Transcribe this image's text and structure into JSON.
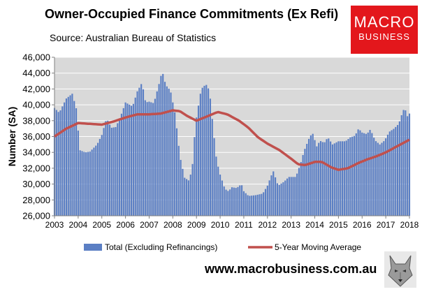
{
  "header": {
    "title": "Owner-Occupied Finance Commitments (Ex Refi)",
    "source": "Source: Australian  Bureau of Statistics",
    "logo_line1": "MACRO",
    "logo_line2": "BUSINESS",
    "website": "www.macrobusiness.com.au"
  },
  "colors": {
    "bar": "#5b7fc4",
    "line": "#c0504d",
    "plot_bg": "#d9d9d9",
    "logo_bg": "#e3171c"
  },
  "icons": {
    "logo_mascot": "wolf-head-icon"
  },
  "chart_data": {
    "type": "bar",
    "ylabel": "Number (SA)",
    "ylim": [
      26000,
      46000
    ],
    "yticks": [
      "26,000",
      "28,000",
      "30,000",
      "32,000",
      "34,000",
      "36,000",
      "38,000",
      "40,000",
      "42,000",
      "44,000",
      "46,000"
    ],
    "xlim": [
      2003,
      2018
    ],
    "xticks": [
      "2003",
      "2004",
      "2005",
      "2006",
      "2007",
      "2008",
      "2009",
      "2010",
      "2011",
      "2012",
      "2013",
      "2014",
      "2015",
      "2016",
      "2017",
      "2018"
    ],
    "grid": true,
    "legend_position": "bottom",
    "series": [
      {
        "name": "Total (Excluding Refinancings)",
        "type": "bar",
        "anchors": [
          [
            2003.0,
            39600
          ],
          [
            2003.2,
            39000
          ],
          [
            2003.5,
            40800
          ],
          [
            2003.75,
            41400
          ],
          [
            2003.95,
            39200
          ],
          [
            2004.05,
            34300
          ],
          [
            2004.3,
            34000
          ],
          [
            2004.5,
            34100
          ],
          [
            2004.8,
            35000
          ],
          [
            2005.0,
            36200
          ],
          [
            2005.2,
            38300
          ],
          [
            2005.4,
            37100
          ],
          [
            2005.6,
            37200
          ],
          [
            2005.85,
            39000
          ],
          [
            2006.0,
            40300
          ],
          [
            2006.3,
            39800
          ],
          [
            2006.5,
            41700
          ],
          [
            2006.7,
            42800
          ],
          [
            2006.85,
            40300
          ],
          [
            2007.0,
            40400
          ],
          [
            2007.2,
            40200
          ],
          [
            2007.45,
            43000
          ],
          [
            2007.55,
            44300
          ],
          [
            2007.7,
            42500
          ],
          [
            2007.9,
            41800
          ],
          [
            2008.1,
            38800
          ],
          [
            2008.3,
            33500
          ],
          [
            2008.5,
            30800
          ],
          [
            2008.7,
            30400
          ],
          [
            2008.85,
            32800
          ],
          [
            2008.95,
            37500
          ],
          [
            2009.05,
            39300
          ],
          [
            2009.2,
            42000
          ],
          [
            2009.4,
            42600
          ],
          [
            2009.55,
            41800
          ],
          [
            2009.7,
            37200
          ],
          [
            2009.85,
            33000
          ],
          [
            2010.0,
            31200
          ],
          [
            2010.2,
            29400
          ],
          [
            2010.35,
            29100
          ],
          [
            2010.5,
            29600
          ],
          [
            2010.7,
            29500
          ],
          [
            2010.9,
            30000
          ],
          [
            2011.0,
            29100
          ],
          [
            2011.2,
            28500
          ],
          [
            2011.5,
            28600
          ],
          [
            2011.8,
            28800
          ],
          [
            2012.0,
            29800
          ],
          [
            2012.15,
            31000
          ],
          [
            2012.25,
            31600
          ],
          [
            2012.45,
            29800
          ],
          [
            2012.7,
            30300
          ],
          [
            2012.9,
            30900
          ],
          [
            2013.0,
            30900
          ],
          [
            2013.2,
            30900
          ],
          [
            2013.4,
            32600
          ],
          [
            2013.55,
            34200
          ],
          [
            2013.75,
            35700
          ],
          [
            2013.9,
            36500
          ],
          [
            2014.1,
            34600
          ],
          [
            2014.2,
            35500
          ],
          [
            2014.4,
            35200
          ],
          [
            2014.55,
            35900
          ],
          [
            2014.75,
            35000
          ],
          [
            2015.0,
            35400
          ],
          [
            2015.3,
            35400
          ],
          [
            2015.5,
            35900
          ],
          [
            2015.7,
            36100
          ],
          [
            2015.85,
            37000
          ],
          [
            2016.0,
            36500
          ],
          [
            2016.2,
            36300
          ],
          [
            2016.35,
            36900
          ],
          [
            2016.55,
            35500
          ],
          [
            2016.75,
            35000
          ],
          [
            2016.95,
            35500
          ],
          [
            2017.15,
            36600
          ],
          [
            2017.35,
            37000
          ],
          [
            2017.55,
            37600
          ],
          [
            2017.7,
            39000
          ],
          [
            2017.8,
            39700
          ],
          [
            2017.9,
            38500
          ],
          [
            2018.0,
            38900
          ],
          [
            2018.05,
            37800
          ]
        ]
      },
      {
        "name": "5-Year Moving Average",
        "type": "line",
        "anchors": [
          [
            2003.0,
            36000
          ],
          [
            2003.5,
            37000
          ],
          [
            2004.0,
            37700
          ],
          [
            2004.5,
            37600
          ],
          [
            2005.0,
            37500
          ],
          [
            2005.5,
            37900
          ],
          [
            2006.0,
            38400
          ],
          [
            2006.5,
            38800
          ],
          [
            2007.0,
            38800
          ],
          [
            2007.5,
            38900
          ],
          [
            2008.0,
            39300
          ],
          [
            2008.3,
            39200
          ],
          [
            2008.6,
            38600
          ],
          [
            2009.0,
            38000
          ],
          [
            2009.5,
            38600
          ],
          [
            2009.9,
            39100
          ],
          [
            2010.3,
            38800
          ],
          [
            2010.8,
            38000
          ],
          [
            2011.2,
            37100
          ],
          [
            2011.6,
            35900
          ],
          [
            2012.0,
            35100
          ],
          [
            2012.5,
            34300
          ],
          [
            2013.0,
            33200
          ],
          [
            2013.3,
            32500
          ],
          [
            2013.6,
            32400
          ],
          [
            2014.0,
            32800
          ],
          [
            2014.3,
            32800
          ],
          [
            2014.7,
            32100
          ],
          [
            2015.0,
            31800
          ],
          [
            2015.4,
            32000
          ],
          [
            2015.8,
            32600
          ],
          [
            2016.2,
            33100
          ],
          [
            2016.6,
            33500
          ],
          [
            2017.0,
            34000
          ],
          [
            2017.5,
            34800
          ],
          [
            2018.0,
            35600
          ]
        ]
      }
    ]
  }
}
